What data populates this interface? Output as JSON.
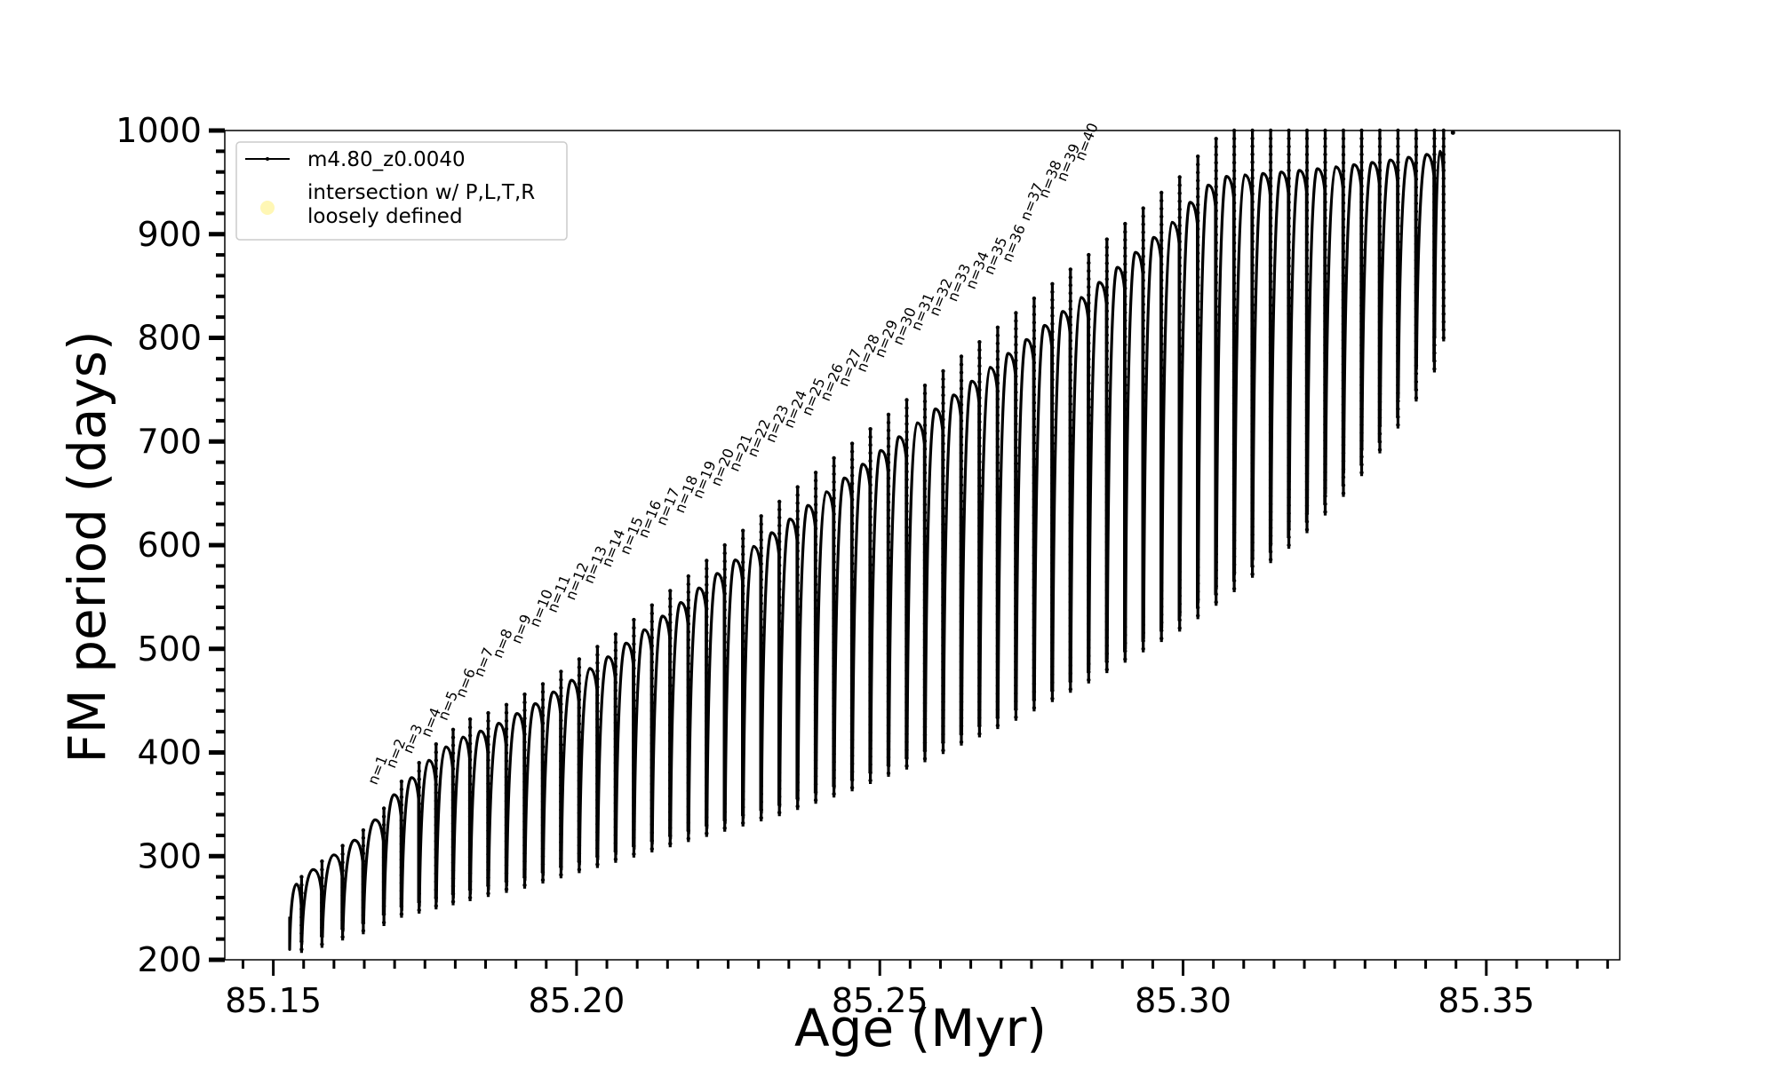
{
  "chart_data": {
    "type": "line",
    "xlabel": "Age (Myr)",
    "ylabel": "FM period (days)",
    "xlim": [
      85.142,
      85.372
    ],
    "ylim": [
      200,
      1000
    ],
    "x_ticks": [
      85.15,
      85.2,
      85.25,
      85.3,
      85.35
    ],
    "x_tick_labels": [
      "85.15",
      "85.20",
      "85.25",
      "85.30",
      "85.35"
    ],
    "y_ticks": [
      200,
      300,
      400,
      500,
      600,
      700,
      800,
      900,
      1000
    ],
    "y_tick_labels": [
      "200",
      "300",
      "400",
      "500",
      "600",
      "700",
      "800",
      "900",
      "1000"
    ],
    "legend_position": "top-left",
    "series": [
      {
        "name": "m4.80_z0.0040",
        "style": "black line with small point markers",
        "color": "#000000",
        "description_of_shape": "repeated thermal-pulse loops; each loop rises from a trough to a peak",
        "loops": [
          {
            "start": 85.1527,
            "end": 85.1547,
            "low": 210,
            "high": 280
          },
          {
            "start": 85.1547,
            "end": 85.1581,
            "low": 215,
            "high": 295
          },
          {
            "start": 85.1581,
            "end": 85.1615,
            "low": 222,
            "high": 310
          },
          {
            "start": 85.1615,
            "end": 85.1649,
            "low": 228,
            "high": 325
          },
          {
            "start": 85.1649,
            "end": 85.1683,
            "low": 236,
            "high": 346
          },
          {
            "start": 85.1683,
            "end": 85.1712,
            "low": 244,
            "high": 372
          },
          {
            "start": 85.1712,
            "end": 85.1741,
            "low": 248,
            "high": 390
          },
          {
            "start": 85.1741,
            "end": 85.1769,
            "low": 252,
            "high": 408
          },
          {
            "start": 85.1769,
            "end": 85.1797,
            "low": 256,
            "high": 422
          },
          {
            "start": 85.1797,
            "end": 85.1825,
            "low": 260,
            "high": 432
          },
          {
            "start": 85.1825,
            "end": 85.1855,
            "low": 264,
            "high": 438
          },
          {
            "start": 85.1855,
            "end": 85.1885,
            "low": 268,
            "high": 446
          },
          {
            "start": 85.1885,
            "end": 85.1915,
            "low": 272,
            "high": 456
          },
          {
            "start": 85.1915,
            "end": 85.1945,
            "low": 277,
            "high": 466
          },
          {
            "start": 85.1945,
            "end": 85.1975,
            "low": 282,
            "high": 478
          },
          {
            "start": 85.1975,
            "end": 85.2005,
            "low": 287,
            "high": 490
          },
          {
            "start": 85.2005,
            "end": 85.2035,
            "low": 292,
            "high": 502
          },
          {
            "start": 85.2035,
            "end": 85.2065,
            "low": 297,
            "high": 514
          },
          {
            "start": 85.2065,
            "end": 85.2095,
            "low": 302,
            "high": 528
          },
          {
            "start": 85.2095,
            "end": 85.2125,
            "low": 307,
            "high": 542
          },
          {
            "start": 85.2125,
            "end": 85.2155,
            "low": 312,
            "high": 556
          },
          {
            "start": 85.2155,
            "end": 85.2185,
            "low": 317,
            "high": 570
          },
          {
            "start": 85.2185,
            "end": 85.2215,
            "low": 322,
            "high": 585
          },
          {
            "start": 85.2215,
            "end": 85.2245,
            "low": 327,
            "high": 600
          },
          {
            "start": 85.2245,
            "end": 85.2275,
            "low": 332,
            "high": 614
          },
          {
            "start": 85.2275,
            "end": 85.2305,
            "low": 337,
            "high": 628
          },
          {
            "start": 85.2305,
            "end": 85.2335,
            "low": 342,
            "high": 642
          },
          {
            "start": 85.2335,
            "end": 85.2365,
            "low": 348,
            "high": 656
          },
          {
            "start": 85.2365,
            "end": 85.2395,
            "low": 354,
            "high": 670
          },
          {
            "start": 85.2395,
            "end": 85.2425,
            "low": 360,
            "high": 684
          },
          {
            "start": 85.2425,
            "end": 85.2455,
            "low": 366,
            "high": 698
          },
          {
            "start": 85.2455,
            "end": 85.2485,
            "low": 373,
            "high": 712
          },
          {
            "start": 85.2485,
            "end": 85.2515,
            "low": 380,
            "high": 726
          },
          {
            "start": 85.2515,
            "end": 85.2545,
            "low": 387,
            "high": 740
          },
          {
            "start": 85.2545,
            "end": 85.2575,
            "low": 394,
            "high": 754
          },
          {
            "start": 85.2575,
            "end": 85.2605,
            "low": 402,
            "high": 768
          },
          {
            "start": 85.2605,
            "end": 85.2635,
            "low": 410,
            "high": 782
          },
          {
            "start": 85.2635,
            "end": 85.2665,
            "low": 418,
            "high": 796
          },
          {
            "start": 85.2665,
            "end": 85.2695,
            "low": 426,
            "high": 810
          },
          {
            "start": 85.2695,
            "end": 85.2725,
            "low": 434,
            "high": 824
          },
          {
            "start": 85.2725,
            "end": 85.2755,
            "low": 443,
            "high": 838
          },
          {
            "start": 85.2755,
            "end": 85.2785,
            "low": 452,
            "high": 852
          },
          {
            "start": 85.2785,
            "end": 85.2815,
            "low": 461,
            "high": 866
          },
          {
            "start": 85.2815,
            "end": 85.2845,
            "low": 470,
            "high": 880
          },
          {
            "start": 85.2845,
            "end": 85.2875,
            "low": 480,
            "high": 895
          },
          {
            "start": 85.2875,
            "end": 85.2905,
            "low": 490,
            "high": 910
          },
          {
            "start": 85.2905,
            "end": 85.2935,
            "low": 500,
            "high": 925
          },
          {
            "start": 85.2935,
            "end": 85.2965,
            "low": 510,
            "high": 940
          },
          {
            "start": 85.2965,
            "end": 85.2995,
            "low": 520,
            "high": 955
          },
          {
            "start": 85.2995,
            "end": 85.3025,
            "low": 532,
            "high": 975
          },
          {
            "start": 85.3025,
            "end": 85.3055,
            "low": 545,
            "high": 992
          },
          {
            "start": 85.3055,
            "end": 85.3085,
            "low": 558,
            "high": 1000
          },
          {
            "start": 85.3085,
            "end": 85.3115,
            "low": 572,
            "high": 1000
          },
          {
            "start": 85.3115,
            "end": 85.3145,
            "low": 586,
            "high": 1000
          },
          {
            "start": 85.3145,
            "end": 85.3175,
            "low": 600,
            "high": 1000
          },
          {
            "start": 85.3175,
            "end": 85.3205,
            "low": 615,
            "high": 1000
          },
          {
            "start": 85.3205,
            "end": 85.3235,
            "low": 632,
            "high": 1000
          },
          {
            "start": 85.3235,
            "end": 85.3265,
            "low": 650,
            "high": 1000
          },
          {
            "start": 85.3265,
            "end": 85.3295,
            "low": 670,
            "high": 1000
          },
          {
            "start": 85.3295,
            "end": 85.3325,
            "low": 692,
            "high": 1000
          },
          {
            "start": 85.3325,
            "end": 85.3355,
            "low": 716,
            "high": 1000
          },
          {
            "start": 85.3355,
            "end": 85.3385,
            "low": 742,
            "high": 1000
          },
          {
            "start": 85.3385,
            "end": 85.3415,
            "low": 770,
            "high": 1000
          },
          {
            "start": 85.3415,
            "end": 85.343,
            "low": 800,
            "high": 1000
          }
        ],
        "last_point": {
          "x": 85.3445,
          "y": 998
        }
      },
      {
        "name": "intersection w/ P,L,T,R loosely defined",
        "style": "pale yellow circle markers",
        "color": "#fff6a8",
        "points": []
      }
    ],
    "legend": [
      {
        "label": "m4.80_z0.0040",
        "marker": "line"
      },
      {
        "label_lines": [
          "intersection w/ P,L,T,R",
          "loosely defined"
        ],
        "marker": "circle"
      }
    ],
    "annotations": [
      {
        "text": "n=1",
        "x": 85.167,
        "y": 368
      },
      {
        "text": "n=2",
        "x": 85.17,
        "y": 384
      },
      {
        "text": "n=3",
        "x": 85.1728,
        "y": 398
      },
      {
        "text": "n=4",
        "x": 85.1758,
        "y": 414
      },
      {
        "text": "n=5",
        "x": 85.1786,
        "y": 430
      },
      {
        "text": "n=6",
        "x": 85.1815,
        "y": 452
      },
      {
        "text": "n=7",
        "x": 85.1845,
        "y": 472
      },
      {
        "text": "n=8",
        "x": 85.1876,
        "y": 490
      },
      {
        "text": "n=9",
        "x": 85.1907,
        "y": 504
      },
      {
        "text": "n=10",
        "x": 85.1937,
        "y": 520
      },
      {
        "text": "n=11",
        "x": 85.1966,
        "y": 534
      },
      {
        "text": "n=12",
        "x": 85.1996,
        "y": 546
      },
      {
        "text": "n=13",
        "x": 85.2026,
        "y": 562
      },
      {
        "text": "n=14",
        "x": 85.2056,
        "y": 578
      },
      {
        "text": "n=15",
        "x": 85.2086,
        "y": 590
      },
      {
        "text": "n=16",
        "x": 85.2116,
        "y": 606
      },
      {
        "text": "n=17",
        "x": 85.2146,
        "y": 618
      },
      {
        "text": "n=18",
        "x": 85.2176,
        "y": 630
      },
      {
        "text": "n=19",
        "x": 85.2206,
        "y": 644
      },
      {
        "text": "n=20",
        "x": 85.2236,
        "y": 656
      },
      {
        "text": "n=21",
        "x": 85.2266,
        "y": 670
      },
      {
        "text": "n=22",
        "x": 85.2296,
        "y": 684
      },
      {
        "text": "n=23",
        "x": 85.2326,
        "y": 698
      },
      {
        "text": "n=24",
        "x": 85.2356,
        "y": 712
      },
      {
        "text": "n=25",
        "x": 85.2386,
        "y": 724
      },
      {
        "text": "n=26",
        "x": 85.2416,
        "y": 738
      },
      {
        "text": "n=27",
        "x": 85.2446,
        "y": 752
      },
      {
        "text": "n=28",
        "x": 85.2476,
        "y": 766
      },
      {
        "text": "n=29",
        "x": 85.2506,
        "y": 780
      },
      {
        "text": "n=30",
        "x": 85.2536,
        "y": 792
      },
      {
        "text": "n=31",
        "x": 85.2566,
        "y": 806
      },
      {
        "text": "n=32",
        "x": 85.2596,
        "y": 820
      },
      {
        "text": "n=33",
        "x": 85.2626,
        "y": 834
      },
      {
        "text": "n=34",
        "x": 85.2656,
        "y": 846
      },
      {
        "text": "n=35",
        "x": 85.2686,
        "y": 860
      },
      {
        "text": "n=36",
        "x": 85.2716,
        "y": 872
      },
      {
        "text": "n=37",
        "x": 85.2746,
        "y": 912
      },
      {
        "text": "n=38",
        "x": 85.2776,
        "y": 934
      },
      {
        "text": "n=39",
        "x": 85.2806,
        "y": 950
      },
      {
        "text": "n=40",
        "x": 85.2836,
        "y": 970
      }
    ]
  }
}
